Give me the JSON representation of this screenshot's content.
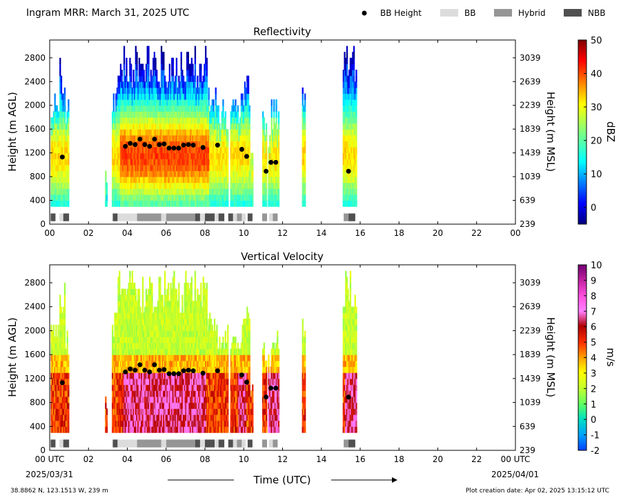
{
  "header": {
    "title": "Ingram MRR:  March 31, 2025 UTC",
    "legend": [
      {
        "label": "BB Height",
        "kind": "dot",
        "color": "#000000"
      },
      {
        "label": "BB",
        "kind": "box",
        "color": "#dcdcdc"
      },
      {
        "label": "Hybrid",
        "kind": "box",
        "color": "#969696"
      },
      {
        "label": "NBB",
        "kind": "box",
        "color": "#505050"
      }
    ]
  },
  "footer": {
    "location": "38.8862 N, 123.1513 W, 239 m",
    "creation": "Plot creation date: Apr 02, 2025 13:15:12 UTC",
    "start_date": "2025/03/31",
    "end_date": "2025/04/01",
    "time_label": "Time (UTC)"
  },
  "chart_data": [
    {
      "type": "heatmap",
      "title": "Reflectivity",
      "ylabel": "Height (m AGL)",
      "ylabel_right": "Height (m MSL)",
      "xlim": [
        0,
        24
      ],
      "ylim": [
        0,
        3100
      ],
      "x_ticks": [
        "00",
        "02",
        "04",
        "06",
        "08",
        "10",
        "12",
        "14",
        "16",
        "18",
        "20",
        "22",
        "00"
      ],
      "y_ticks": [
        0,
        400,
        800,
        1200,
        1600,
        2000,
        2400,
        2800
      ],
      "y_ticks_right": [
        "239",
        "639",
        "1039",
        "1439",
        "1839",
        "2239",
        "2639",
        "3039"
      ],
      "colorbar": {
        "label": "dBZ",
        "min": -5,
        "max": 50,
        "ticks": [
          "0",
          "10",
          "20",
          "30",
          "40",
          "50"
        ],
        "tick_values": [
          0,
          10,
          20,
          30,
          40,
          50
        ],
        "scheme": "jet"
      }
    },
    {
      "type": "heatmap",
      "title": "Vertical Velocity",
      "ylabel": "Height (m AGL)",
      "ylabel_right": "Height (m MSL)",
      "xlim": [
        0,
        24
      ],
      "ylim": [
        0,
        3100
      ],
      "x_ticks": [
        "00 UTC",
        "02",
        "04",
        "06",
        "08",
        "10",
        "12",
        "14",
        "16",
        "18",
        "20",
        "22",
        "00 UTC"
      ],
      "y_ticks": [
        0,
        400,
        800,
        1200,
        1600,
        2000,
        2400,
        2800
      ],
      "y_ticks_right": [
        "239",
        "639",
        "1039",
        "1439",
        "1839",
        "2239",
        "2639",
        "3039"
      ],
      "colorbar": {
        "label": "m/s",
        "min": -2,
        "max": 10,
        "ticks": [
          "-2",
          "-1",
          "0",
          "1",
          "2",
          "3",
          "4",
          "5",
          "6",
          "7",
          "8",
          "9",
          "10"
        ],
        "tick_values": [
          -2,
          -1,
          0,
          1,
          2,
          3,
          4,
          5,
          6,
          7,
          8,
          9,
          10
        ],
        "scheme": "vel"
      }
    }
  ],
  "bb_height": {
    "times": [
      0.65,
      3.9,
      4.15,
      4.4,
      4.65,
      4.9,
      5.15,
      5.4,
      5.65,
      5.9,
      6.15,
      6.4,
      6.65,
      6.9,
      7.15,
      7.4,
      7.9,
      8.65,
      9.9,
      10.15,
      11.15,
      11.4,
      11.65,
      15.4
    ],
    "heights": [
      1130,
      1310,
      1360,
      1340,
      1430,
      1340,
      1310,
      1430,
      1340,
      1350,
      1280,
      1280,
      1280,
      1330,
      1340,
      1330,
      1290,
      1330,
      1260,
      1140,
      890,
      1040,
      1040,
      890
    ]
  },
  "bb_type": [
    {
      "start": 0.05,
      "end": 0.3,
      "type": "NBB"
    },
    {
      "start": 0.5,
      "end": 0.7,
      "type": "BB"
    },
    {
      "start": 0.7,
      "end": 1.0,
      "type": "NBB"
    },
    {
      "start": 3.25,
      "end": 3.5,
      "type": "NBB"
    },
    {
      "start": 3.5,
      "end": 4.5,
      "type": "BB"
    },
    {
      "start": 4.5,
      "end": 5.75,
      "type": "Hybrid"
    },
    {
      "start": 5.75,
      "end": 6.0,
      "type": "BB"
    },
    {
      "start": 6.0,
      "end": 7.5,
      "type": "Hybrid"
    },
    {
      "start": 7.5,
      "end": 7.75,
      "type": "NBB"
    },
    {
      "start": 7.75,
      "end": 8.0,
      "type": "BB"
    },
    {
      "start": 8.0,
      "end": 8.5,
      "type": "NBB"
    },
    {
      "start": 8.5,
      "end": 8.7,
      "type": "BB"
    },
    {
      "start": 8.7,
      "end": 9.0,
      "type": "NBB"
    },
    {
      "start": 9.2,
      "end": 9.45,
      "type": "NBB"
    },
    {
      "start": 9.45,
      "end": 9.65,
      "type": "BB"
    },
    {
      "start": 9.65,
      "end": 9.9,
      "type": "Hybrid"
    },
    {
      "start": 9.9,
      "end": 10.1,
      "type": "BB"
    },
    {
      "start": 10.2,
      "end": 10.45,
      "type": "NBB"
    },
    {
      "start": 10.95,
      "end": 11.2,
      "type": "Hybrid"
    },
    {
      "start": 11.3,
      "end": 11.5,
      "type": "BB"
    },
    {
      "start": 11.5,
      "end": 11.75,
      "type": "Hybrid"
    },
    {
      "start": 15.15,
      "end": 15.4,
      "type": "Hybrid"
    },
    {
      "start": 15.4,
      "end": 15.75,
      "type": "NBB"
    }
  ],
  "precip_segments": [
    {
      "start": 0.05,
      "end": 0.5,
      "top": 2300
    },
    {
      "start": 0.5,
      "end": 0.75,
      "top": 2800
    },
    {
      "start": 0.75,
      "end": 0.95,
      "top": 2100
    },
    {
      "start": 2.85,
      "end": 2.95,
      "top": 900
    },
    {
      "start": 3.2,
      "end": 3.5,
      "top": 2300
    },
    {
      "start": 3.5,
      "end": 8.1,
      "top": 2980
    },
    {
      "start": 8.1,
      "end": 8.6,
      "top": 2300
    },
    {
      "start": 8.6,
      "end": 9.2,
      "top": 2050
    },
    {
      "start": 9.3,
      "end": 9.9,
      "top": 2150
    },
    {
      "start": 9.9,
      "end": 10.3,
      "top": 2600
    },
    {
      "start": 10.3,
      "end": 10.45,
      "top": 1150
    },
    {
      "start": 10.95,
      "end": 11.15,
      "top": 1900
    },
    {
      "start": 11.25,
      "end": 11.4,
      "top": 1550
    },
    {
      "start": 11.4,
      "end": 11.8,
      "top": 2050
    },
    {
      "start": 13.0,
      "end": 13.15,
      "top": 2500
    },
    {
      "start": 15.1,
      "end": 15.8,
      "top": 2980
    }
  ]
}
